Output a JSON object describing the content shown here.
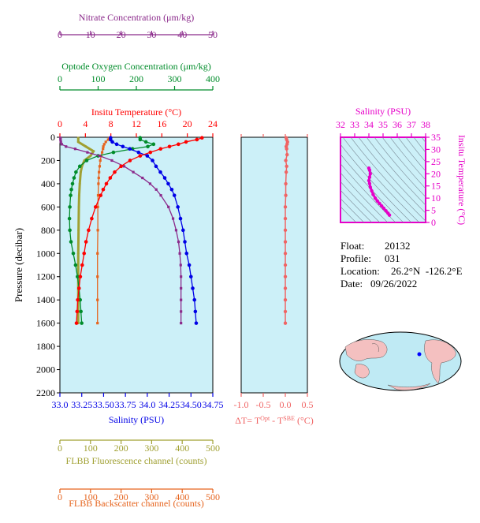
{
  "colors": {
    "nitrate": "#8b2a8b",
    "oxygen": "#008c2a",
    "temperature": "#ff0000",
    "salinity": "#0000e6",
    "fluorescence": "#a0a032",
    "backscatter": "#e6641e",
    "delta_t": "#f06464",
    "ts": "#e600c8",
    "plot_bg": "#ccf0f8"
  },
  "info": {
    "float_label": "Float:",
    "float_value": "20132",
    "profile_label": "Profile:",
    "profile_value": "031",
    "location_label": "Location:",
    "location_value": "26.2°N  -126.2°E",
    "date_label": "Date:",
    "date_value": "09/26/2022"
  },
  "chart_data": [
    {
      "type": "line",
      "ylabel": "Pressure (decibar)",
      "ylim": [
        2200,
        0
      ],
      "y_ticks": [
        0,
        200,
        400,
        600,
        800,
        1000,
        1200,
        1400,
        1600,
        1800,
        2000,
        2200
      ],
      "axes": [
        {
          "key": "nitrate",
          "label": "Nitrate Concentration (μm/kg)",
          "range": [
            0,
            50
          ],
          "ticks": [
            0,
            10,
            20,
            30,
            40,
            50
          ]
        },
        {
          "key": "oxygen",
          "label": "Optode Oxygen Concentration (μm/kg)",
          "range": [
            0,
            400
          ],
          "ticks": [
            0,
            100,
            200,
            300,
            400
          ]
        },
        {
          "key": "temperature",
          "label": "Insitu Temperature (°C)",
          "range": [
            0,
            24
          ],
          "ticks": [
            0,
            4,
            8,
            12,
            16,
            20,
            24
          ]
        },
        {
          "key": "salinity",
          "label": "Salinity (PSU)",
          "range": [
            33.0,
            34.75
          ],
          "ticks": [
            33.0,
            33.25,
            33.5,
            33.75,
            34.0,
            34.25,
            34.5,
            34.75
          ],
          "tick_labels": [
            "33.0",
            "33.25",
            "33.50",
            "33.75",
            "34.0",
            "34.25",
            "34.50",
            "34.75"
          ]
        },
        {
          "key": "fluorescence",
          "label": "FLBB Fluorescence channel (counts)",
          "range": [
            0,
            500
          ],
          "ticks": [
            0,
            100,
            200,
            300,
            400,
            500
          ]
        },
        {
          "key": "backscatter",
          "label": "FLBB Backscatter channel (counts)",
          "range": [
            0,
            500
          ],
          "ticks": [
            0,
            100,
            200,
            300,
            400,
            500
          ]
        }
      ],
      "series": [
        {
          "key": "temperature",
          "pressure": [
            5,
            20,
            40,
            60,
            80,
            100,
            130,
            160,
            200,
            250,
            300,
            350,
            400,
            450,
            500,
            600,
            700,
            800,
            900,
            1000,
            1100,
            1200,
            1300,
            1400,
            1500,
            1600
          ],
          "values": [
            22.3,
            21.5,
            19.8,
            18.6,
            17.2,
            15.8,
            14.2,
            12.6,
            11.0,
            9.6,
            8.6,
            7.9,
            7.3,
            6.8,
            6.4,
            5.6,
            5.0,
            4.5,
            4.1,
            3.8,
            3.5,
            3.2,
            3.0,
            2.8,
            2.7,
            2.6
          ]
        },
        {
          "key": "salinity",
          "pressure": [
            5,
            20,
            40,
            60,
            80,
            100,
            130,
            160,
            200,
            250,
            300,
            350,
            400,
            450,
            500,
            600,
            700,
            800,
            900,
            1000,
            1100,
            1200,
            1300,
            1400,
            1500,
            1600
          ],
          "values": [
            33.58,
            33.58,
            33.6,
            33.65,
            33.72,
            33.8,
            33.9,
            34.0,
            34.06,
            34.1,
            34.15,
            34.2,
            34.24,
            34.28,
            34.31,
            34.35,
            34.38,
            34.41,
            34.43,
            34.45,
            34.48,
            34.5,
            34.52,
            34.54,
            34.55,
            34.56
          ]
        },
        {
          "key": "nitrate",
          "pressure": [
            5,
            20,
            40,
            60,
            80,
            100,
            130,
            160,
            200,
            250,
            300,
            350,
            400,
            450,
            500,
            600,
            700,
            800,
            900,
            1000,
            1100,
            1200,
            1300,
            1400,
            1500,
            1600
          ],
          "values": [
            0.2,
            0.2,
            0.3,
            0.6,
            2.0,
            5.0,
            9.0,
            13.0,
            17.0,
            21.0,
            24.0,
            27.0,
            29.5,
            31.5,
            33.0,
            35.5,
            37.0,
            38.0,
            38.8,
            39.2,
            39.5,
            39.6,
            39.6,
            39.6,
            39.6,
            39.6
          ]
        },
        {
          "key": "oxygen",
          "pressure": [
            5,
            20,
            40,
            60,
            80,
            100,
            130,
            160,
            200,
            250,
            300,
            350,
            400,
            450,
            500,
            600,
            700,
            800,
            900,
            1000,
            1100,
            1200,
            1300,
            1400,
            1500,
            1600
          ],
          "values": [
            210,
            210,
            225,
            245,
            230,
            190,
            140,
            100,
            70,
            52,
            42,
            37,
            33,
            30,
            28,
            26,
            25,
            26,
            29,
            35,
            41,
            46,
            50,
            53,
            55,
            57
          ]
        },
        {
          "key": "fluorescence",
          "pressure": [
            5,
            40,
            80,
            120,
            160,
            200,
            250,
            300,
            400,
            500,
            600,
            800,
            1000,
            1200,
            1400,
            1600
          ],
          "values": [
            60,
            60,
            85,
            110,
            100,
            80,
            72,
            68,
            65,
            63,
            62,
            61,
            60,
            60,
            60,
            60
          ]
        },
        {
          "key": "backscatter",
          "pressure": [
            5,
            20,
            40,
            60,
            80,
            100,
            130,
            160,
            200,
            250,
            300,
            350,
            400,
            500,
            600,
            800,
            1000,
            1200,
            1400,
            1600
          ],
          "values": [
            162,
            158,
            150,
            145,
            142,
            141,
            138,
            135,
            132,
            130,
            128,
            127,
            126,
            125,
            124,
            124,
            123,
            123,
            123,
            123
          ]
        }
      ]
    },
    {
      "type": "line",
      "xlabel": "ΔT= T",
      "xlabel_sup1": "Opt",
      "xlabel_mid": " - T",
      "xlabel_sup2": "SBE",
      "xlabel_unit": " (°C)",
      "xlim": [
        -1.0,
        0.5
      ],
      "x_ticks": [
        -1.0,
        -0.5,
        0.0,
        0.5
      ],
      "x_tick_labels": [
        "-1.0",
        "-0.5",
        "0.0",
        "0.5"
      ],
      "ylim": [
        2200,
        0
      ],
      "series": [
        {
          "key": "delta_t",
          "pressure": [
            5,
            20,
            40,
            60,
            80,
            100,
            150,
            200,
            250,
            300,
            400,
            500,
            600,
            700,
            800,
            900,
            1000,
            1100,
            1200,
            1300,
            1400,
            1500,
            1600
          ],
          "values": [
            0.02,
            0.03,
            0.05,
            0.04,
            0.02,
            0.03,
            0.04,
            0.01,
            0.03,
            0.02,
            0.01,
            0.01,
            0.0,
            0.0,
            0.0,
            0.0,
            0.0,
            0.0,
            0.0,
            0.0,
            0.0,
            0.0,
            0.0
          ]
        }
      ]
    },
    {
      "type": "scatter",
      "xlabel": "Salinity (PSU)",
      "ylabel": "Insitu Temperature (°C)",
      "xlim": [
        32,
        38
      ],
      "ylim": [
        0,
        35
      ],
      "x_ticks": [
        32,
        33,
        34,
        35,
        36,
        37,
        38
      ],
      "y_ticks": [
        0,
        5,
        10,
        15,
        20,
        25,
        30,
        35
      ],
      "series": [
        {
          "key": "ts",
          "salinity": [
            34.0,
            34.05,
            34.1,
            34.05,
            34.0,
            34.05,
            34.1,
            34.2,
            34.3,
            34.45,
            34.6,
            34.75,
            34.9,
            35.05,
            35.2,
            35.35,
            35.45
          ],
          "temperature": [
            22.3,
            21.5,
            20.0,
            18.6,
            17.2,
            16.0,
            14.5,
            13.0,
            11.5,
            10.0,
            8.8,
            7.8,
            6.8,
            5.8,
            4.8,
            3.8,
            3.0
          ]
        }
      ]
    }
  ]
}
